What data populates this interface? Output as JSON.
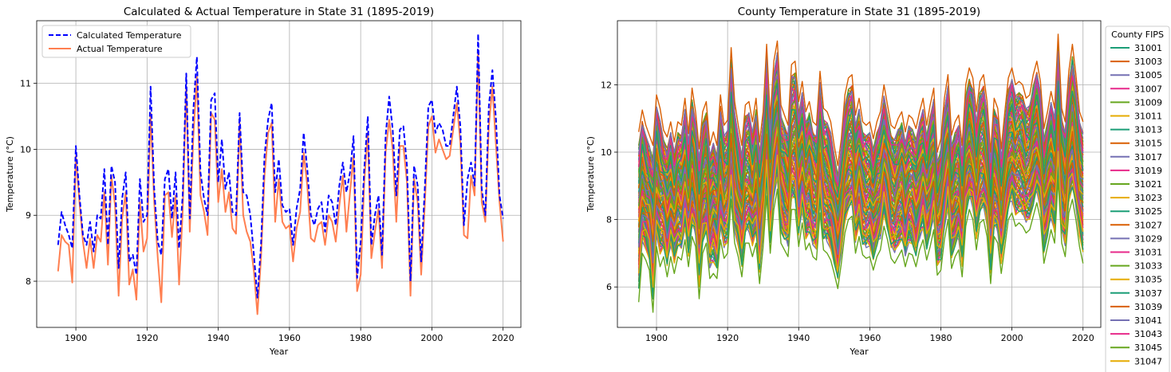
{
  "chart_data": [
    {
      "type": "line",
      "title": "Calculated & Actual Temperature in State 31 (1895-2019)",
      "xlabel": "Year",
      "ylabel": "Temperature (°C)",
      "xlim": [
        1889,
        2025
      ],
      "ylim": [
        7.3,
        11.95
      ],
      "xticks": [
        1900,
        1920,
        1940,
        1960,
        1980,
        2000,
        2020
      ],
      "yticks": [
        8,
        9,
        10,
        11
      ],
      "grid": true,
      "legend": "top-left",
      "x_start": 1895,
      "series": [
        {
          "name": "Calculated Temperature",
          "color": "#0000ff",
          "style": "dashed",
          "values": [
            8.55,
            9.05,
            8.85,
            8.7,
            8.5,
            10.05,
            9.3,
            8.7,
            8.55,
            8.9,
            8.45,
            9.0,
            8.95,
            9.7,
            8.55,
            9.75,
            9.5,
            8.2,
            9.25,
            9.65,
            8.3,
            8.4,
            8.1,
            9.55,
            8.9,
            9.0,
            10.95,
            9.4,
            8.6,
            8.4,
            9.55,
            9.7,
            8.95,
            9.65,
            8.5,
            9.3,
            11.15,
            8.95,
            10.6,
            11.4,
            9.65,
            9.25,
            9.0,
            10.75,
            10.85,
            9.5,
            10.15,
            9.4,
            9.65,
            9.05,
            9.0,
            10.55,
            9.35,
            9.3,
            9.0,
            8.4,
            7.75,
            8.55,
            9.9,
            10.45,
            10.7,
            9.35,
            9.85,
            9.15,
            9.05,
            9.1,
            8.55,
            9.1,
            9.4,
            10.25,
            9.7,
            9.0,
            8.85,
            9.1,
            9.2,
            8.75,
            9.3,
            9.2,
            8.85,
            9.45,
            9.8,
            9.35,
            9.65,
            10.2,
            8.05,
            8.6,
            9.7,
            10.5,
            8.55,
            9.0,
            9.3,
            8.4,
            10.2,
            10.8,
            10.3,
            9.3,
            10.3,
            10.35,
            9.75,
            8.0,
            9.75,
            9.45,
            8.3,
            9.4,
            10.65,
            10.75,
            10.25,
            10.4,
            10.3,
            10.05,
            10.05,
            10.5,
            10.95,
            10.35,
            8.85,
            9.55,
            9.8,
            9.45,
            11.75,
            9.4,
            9.0,
            10.65,
            11.2,
            10.45,
            9.3,
            8.95
          ]
        },
        {
          "name": "Actual Temperature",
          "color": "#ff7f50",
          "style": "solid",
          "values": [
            8.15,
            8.7,
            8.6,
            8.55,
            7.98,
            9.9,
            9.2,
            8.6,
            8.2,
            8.65,
            8.2,
            8.7,
            8.6,
            9.35,
            8.25,
            9.6,
            9.15,
            7.78,
            8.95,
            9.35,
            7.95,
            8.18,
            7.72,
            9.2,
            8.45,
            8.65,
            10.55,
            9.2,
            8.35,
            7.68,
            9.3,
            9.35,
            8.67,
            9.3,
            7.95,
            9.05,
            10.95,
            8.75,
            10.2,
            11.1,
            9.3,
            9.05,
            8.7,
            10.55,
            10.45,
            9.2,
            9.7,
            9.05,
            9.35,
            8.8,
            8.72,
            10.4,
            9.0,
            8.75,
            8.6,
            8.15,
            7.5,
            8.35,
            9.6,
            10.25,
            10.4,
            8.9,
            9.55,
            8.9,
            8.8,
            8.85,
            8.3,
            8.8,
            9.05,
            9.95,
            9.45,
            8.65,
            8.6,
            8.85,
            8.9,
            8.55,
            9.0,
            8.9,
            8.6,
            9.15,
            9.6,
            8.75,
            9.35,
            9.9,
            7.85,
            8.1,
            9.5,
            10.25,
            8.35,
            8.75,
            9.1,
            8.2,
            9.95,
            10.45,
            10.0,
            8.9,
            10.05,
            10.05,
            9.5,
            7.78,
            9.55,
            9.2,
            8.1,
            9.15,
            10.35,
            10.5,
            9.95,
            10.15,
            10.0,
            9.85,
            9.9,
            10.3,
            10.7,
            10.1,
            8.7,
            8.65,
            9.6,
            9.3,
            11.5,
            9.2,
            8.9,
            10.35,
            10.95,
            10.05,
            9.2,
            8.6
          ]
        }
      ]
    },
    {
      "type": "line",
      "title": "County Temperature in State 31 (1895-2019)",
      "xlabel": "Year",
      "ylabel": "Temperature (°C)",
      "xlim": [
        1889,
        2025
      ],
      "ylim": [
        4.8,
        13.9
      ],
      "xticks": [
        1900,
        1920,
        1940,
        1960,
        1980,
        2000,
        2020
      ],
      "yticks": [
        6,
        8,
        10,
        12
      ],
      "grid": true,
      "legend": "outside-right",
      "legend_title": "County FIPS",
      "x_start": 1895,
      "envelope": {
        "upper": [
          10.6,
          11.25,
          10.8,
          10.5,
          10.2,
          11.7,
          11.3,
          10.65,
          10.45,
          10.9,
          10.3,
          10.9,
          10.8,
          11.6,
          10.55,
          11.9,
          11.2,
          10.1,
          11.2,
          11.5,
          10.2,
          10.6,
          10.2,
          11.7,
          10.8,
          10.95,
          13.1,
          11.5,
          10.8,
          10.2,
          11.4,
          11.5,
          10.9,
          11.6,
          10.3,
          11.2,
          13.2,
          11.0,
          12.7,
          13.3,
          11.4,
          11.1,
          10.8,
          12.6,
          12.7,
          11.5,
          12.1,
          11.2,
          11.5,
          10.9,
          10.8,
          12.4,
          11.3,
          11.2,
          10.9,
          10.2,
          9.6,
          10.4,
          11.7,
          12.2,
          12.3,
          11.1,
          11.6,
          10.9,
          10.8,
          10.9,
          10.4,
          10.9,
          11.2,
          12.0,
          11.4,
          10.8,
          10.7,
          11.0,
          11.2,
          10.6,
          11.1,
          11.0,
          10.7,
          11.2,
          11.6,
          10.8,
          11.4,
          11.9,
          10.0,
          10.4,
          11.6,
          12.3,
          10.5,
          10.9,
          11.1,
          10.2,
          12.0,
          12.5,
          12.2,
          11.2,
          12.1,
          12.3,
          11.5,
          10.0,
          11.6,
          11.3,
          10.1,
          11.2,
          12.2,
          12.5,
          12.0,
          12.1,
          12.0,
          11.6,
          11.7,
          12.3,
          12.7,
          12.1,
          10.7,
          11.2,
          11.8,
          11.3,
          13.5,
          11.3,
          10.9,
          12.4,
          13.2,
          12.3,
          11.2,
          10.9
        ],
        "lower": [
          5.55,
          7.0,
          6.8,
          6.5,
          5.25,
          7.2,
          6.6,
          6.9,
          6.3,
          6.9,
          6.4,
          6.9,
          6.8,
          7.4,
          6.6,
          7.5,
          7.2,
          5.65,
          7.0,
          7.3,
          6.25,
          6.4,
          6.25,
          7.4,
          6.85,
          7.0,
          8.6,
          7.3,
          6.9,
          6.3,
          7.3,
          7.3,
          6.9,
          7.3,
          6.1,
          7.2,
          8.7,
          7.0,
          8.3,
          8.9,
          7.3,
          7.1,
          6.9,
          8.3,
          8.3,
          7.2,
          7.9,
          7.1,
          7.3,
          6.9,
          6.8,
          8.2,
          7.1,
          7.0,
          6.8,
          6.4,
          5.95,
          6.7,
          7.6,
          8.0,
          8.1,
          7.0,
          7.5,
          6.95,
          6.85,
          6.9,
          6.5,
          6.9,
          7.1,
          7.8,
          7.4,
          6.85,
          6.7,
          6.9,
          7.1,
          6.6,
          7.0,
          6.95,
          6.6,
          7.1,
          7.4,
          6.8,
          7.2,
          7.7,
          6.35,
          6.5,
          7.4,
          8.0,
          6.55,
          6.9,
          7.1,
          6.3,
          7.8,
          8.3,
          8.0,
          7.1,
          7.9,
          8.0,
          7.5,
          6.1,
          7.5,
          7.3,
          6.4,
          7.2,
          8.0,
          8.2,
          7.8,
          7.9,
          7.8,
          7.6,
          7.7,
          8.1,
          8.5,
          8.0,
          6.7,
          7.2,
          7.7,
          7.3,
          9.2,
          7.3,
          6.9,
          8.2,
          8.6,
          8.0,
          7.2,
          6.7
        ]
      },
      "colors": [
        "#1b9e77",
        "#d95f02",
        "#7570b3",
        "#e7298a",
        "#66a61e",
        "#e6ab02"
      ],
      "counties": [
        "31001",
        "31003",
        "31005",
        "31007",
        "31009",
        "31011",
        "31013",
        "31015",
        "31017",
        "31019",
        "31021",
        "31023",
        "31025",
        "31027",
        "31029",
        "31031",
        "31033",
        "31035",
        "31037",
        "31039",
        "31041",
        "31043",
        "31045",
        "31047"
      ]
    }
  ]
}
